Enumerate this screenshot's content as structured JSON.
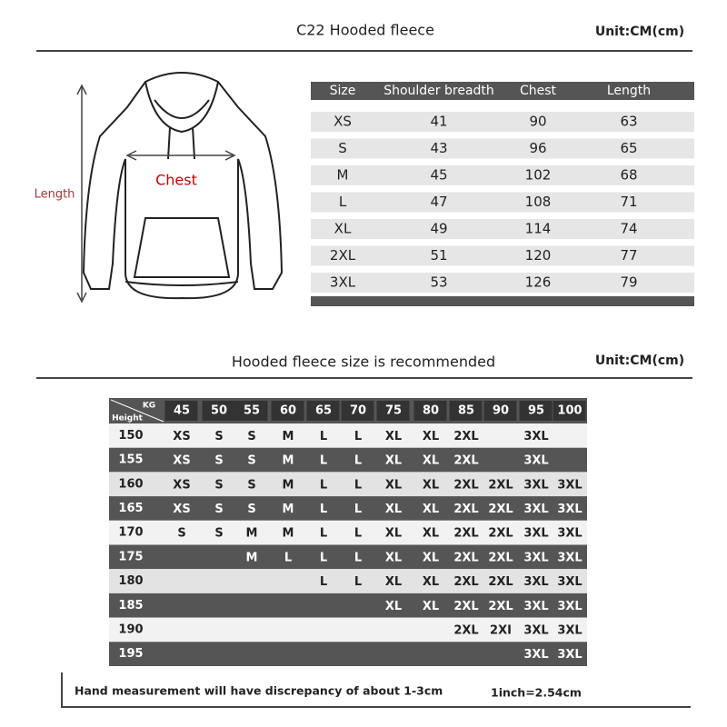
{
  "header": {
    "title": "C22 Hooded fleece",
    "unit": "Unit:CM(cm)"
  },
  "illustration": {
    "length_label": "Length",
    "chest_label": "Chest"
  },
  "size_table": {
    "columns": [
      "Size",
      "Shoulder breadth",
      "Chest",
      "Length"
    ],
    "rows": [
      [
        "XS",
        41,
        90,
        63
      ],
      [
        "S",
        43,
        96,
        65
      ],
      [
        "M",
        45,
        102,
        68
      ],
      [
        "L",
        47,
        108,
        71
      ],
      [
        "XL",
        49,
        114,
        74
      ],
      [
        "2XL",
        51,
        120,
        77
      ],
      [
        "3XL",
        53,
        126,
        79
      ]
    ]
  },
  "recommend_header": {
    "title": "Hooded fleece size is recommended",
    "unit": "Unit:CM(cm)"
  },
  "recommend_table": {
    "corner_weight": "KG",
    "corner_height": "Height",
    "weights": [
      45,
      50,
      55,
      60,
      65,
      70,
      75,
      80,
      85,
      90,
      95,
      100
    ],
    "rows": [
      {
        "height": 150,
        "sizes": [
          "XS",
          "S",
          "S",
          "M",
          "L",
          "L",
          "XL",
          "XL",
          "2XL",
          null,
          "3XL",
          null
        ]
      },
      {
        "height": 155,
        "sizes": [
          "XS",
          "S",
          "S",
          "M",
          "L",
          "L",
          "XL",
          "XL",
          "2XL",
          null,
          "3XL",
          null
        ]
      },
      {
        "height": 160,
        "sizes": [
          "XS",
          "S",
          "S",
          "M",
          "L",
          "L",
          "XL",
          "XL",
          "2XL",
          "2XL",
          "3XL",
          "3XL"
        ]
      },
      {
        "height": 165,
        "sizes": [
          "XS",
          "S",
          "S",
          "M",
          "L",
          "L",
          "XL",
          "XL",
          "2XL",
          "2XL",
          "3XL",
          "3XL"
        ]
      },
      {
        "height": 170,
        "sizes": [
          "S",
          "S",
          "M",
          "M",
          "L",
          "L",
          "XL",
          "XL",
          "2XL",
          "2XL",
          "3XL",
          "3XL"
        ]
      },
      {
        "height": 175,
        "sizes": [
          null,
          null,
          "M",
          "L",
          "L",
          "L",
          "XL",
          "XL",
          "2XL",
          "2XL",
          "3XL",
          "3XL"
        ]
      },
      {
        "height": 180,
        "sizes": [
          null,
          null,
          null,
          null,
          "L",
          "L",
          "XL",
          "XL",
          "2XL",
          "2XL",
          "3XL",
          "3XL"
        ]
      },
      {
        "height": 185,
        "sizes": [
          null,
          null,
          null,
          null,
          null,
          null,
          "XL",
          "XL",
          "2XL",
          "2XL",
          "3XL",
          "3XL"
        ]
      },
      {
        "height": 190,
        "sizes": [
          null,
          null,
          null,
          null,
          null,
          null,
          null,
          null,
          "2XL",
          "2XI",
          "3XL",
          "3XL"
        ]
      },
      {
        "height": 195,
        "sizes": [
          null,
          null,
          null,
          null,
          null,
          null,
          null,
          null,
          null,
          null,
          "3XL",
          "3XL"
        ]
      }
    ]
  },
  "footer": {
    "note": "Hand measurement will have discrepancy of about  1-3cm",
    "conversion": "1inch=2.54cm"
  }
}
